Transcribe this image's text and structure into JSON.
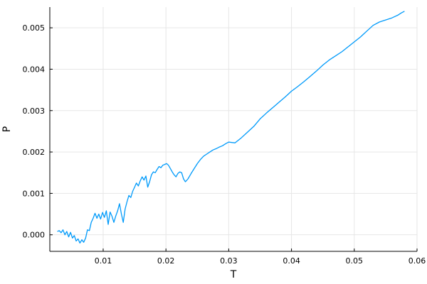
{
  "chart_data": {
    "type": "line",
    "title": "",
    "xlabel": "T",
    "ylabel": "P",
    "xlim": [
      0.0015,
      0.06
    ],
    "ylim": [
      -0.0004,
      0.0055
    ],
    "x_ticks": [
      0.01,
      0.02,
      0.03,
      0.04,
      0.05,
      0.06
    ],
    "x_tick_labels": [
      "0.01",
      "0.02",
      "0.03",
      "0.04",
      "0.05",
      "0.06"
    ],
    "y_ticks": [
      0.0,
      0.001,
      0.002,
      0.003,
      0.004,
      0.005
    ],
    "y_tick_labels": [
      "0.000",
      "0.001",
      "0.002",
      "0.003",
      "0.004",
      "0.005"
    ],
    "grid": true,
    "legend": "none",
    "series": [
      {
        "color": "#009AFA",
        "x": [
          0.0027,
          0.003,
          0.0033,
          0.0036,
          0.0039,
          0.0042,
          0.0045,
          0.0048,
          0.0051,
          0.0054,
          0.0057,
          0.006,
          0.0063,
          0.0066,
          0.0069,
          0.0072,
          0.0075,
          0.0078,
          0.0081,
          0.0084,
          0.0087,
          0.009,
          0.0093,
          0.0096,
          0.0099,
          0.0102,
          0.0105,
          0.0108,
          0.0111,
          0.0114,
          0.0117,
          0.012,
          0.0123,
          0.0126,
          0.0129,
          0.0132,
          0.0135,
          0.0138,
          0.0141,
          0.0144,
          0.0147,
          0.015,
          0.0153,
          0.0156,
          0.0159,
          0.0162,
          0.0165,
          0.0168,
          0.0171,
          0.0174,
          0.0177,
          0.018,
          0.0183,
          0.0186,
          0.0189,
          0.0192,
          0.0195,
          0.0198,
          0.0201,
          0.0204,
          0.0207,
          0.021,
          0.0213,
          0.0216,
          0.0219,
          0.0222,
          0.0225,
          0.0228,
          0.0231,
          0.0235,
          0.024,
          0.0245,
          0.025,
          0.0255,
          0.026,
          0.0265,
          0.027,
          0.0275,
          0.028,
          0.0285,
          0.029,
          0.0295,
          0.03,
          0.0305,
          0.031,
          0.0315,
          0.032,
          0.033,
          0.034,
          0.035,
          0.036,
          0.037,
          0.038,
          0.039,
          0.04,
          0.041,
          0.042,
          0.043,
          0.044,
          0.045,
          0.046,
          0.047,
          0.048,
          0.049,
          0.05,
          0.051,
          0.052,
          0.053,
          0.054,
          0.055,
          0.056,
          0.057,
          0.0575,
          0.058
        ],
        "y": [
          8e-05,
          0.0001,
          5e-05,
          0.00012,
          0.0,
          8e-05,
          -5e-05,
          6e-05,
          -8e-05,
          -2e-05,
          -0.00015,
          -0.0001,
          -0.0002,
          -0.00012,
          -0.00018,
          -8e-05,
          0.00012,
          0.0001,
          0.0003,
          0.0004,
          0.00052,
          0.0004,
          0.0005,
          0.00038,
          0.00054,
          0.00042,
          0.00058,
          0.00025,
          0.00055,
          0.00045,
          0.0003,
          0.00045,
          0.00058,
          0.00075,
          0.0005,
          0.0003,
          0.00062,
          0.0008,
          0.00095,
          0.0009,
          0.00105,
          0.00115,
          0.00125,
          0.00118,
          0.0013,
          0.0014,
          0.00132,
          0.00142,
          0.00115,
          0.00128,
          0.00145,
          0.00152,
          0.0015,
          0.00158,
          0.00165,
          0.00162,
          0.00168,
          0.0017,
          0.00172,
          0.00168,
          0.0016,
          0.00152,
          0.00145,
          0.0014,
          0.00148,
          0.00152,
          0.0015,
          0.00135,
          0.00128,
          0.00135,
          0.00148,
          0.0016,
          0.00172,
          0.00182,
          0.0019,
          0.00195,
          0.002,
          0.00205,
          0.00208,
          0.00212,
          0.00215,
          0.0022,
          0.00224,
          0.00223,
          0.00222,
          0.00228,
          0.00234,
          0.00248,
          0.00262,
          0.0028,
          0.00294,
          0.00307,
          0.0032,
          0.00333,
          0.00347,
          0.00358,
          0.0037,
          0.00383,
          0.00396,
          0.0041,
          0.00422,
          0.00432,
          0.00442,
          0.00454,
          0.00466,
          0.00478,
          0.00492,
          0.00506,
          0.00514,
          0.00519,
          0.00524,
          0.00531,
          0.00536,
          0.0054
        ]
      }
    ]
  }
}
